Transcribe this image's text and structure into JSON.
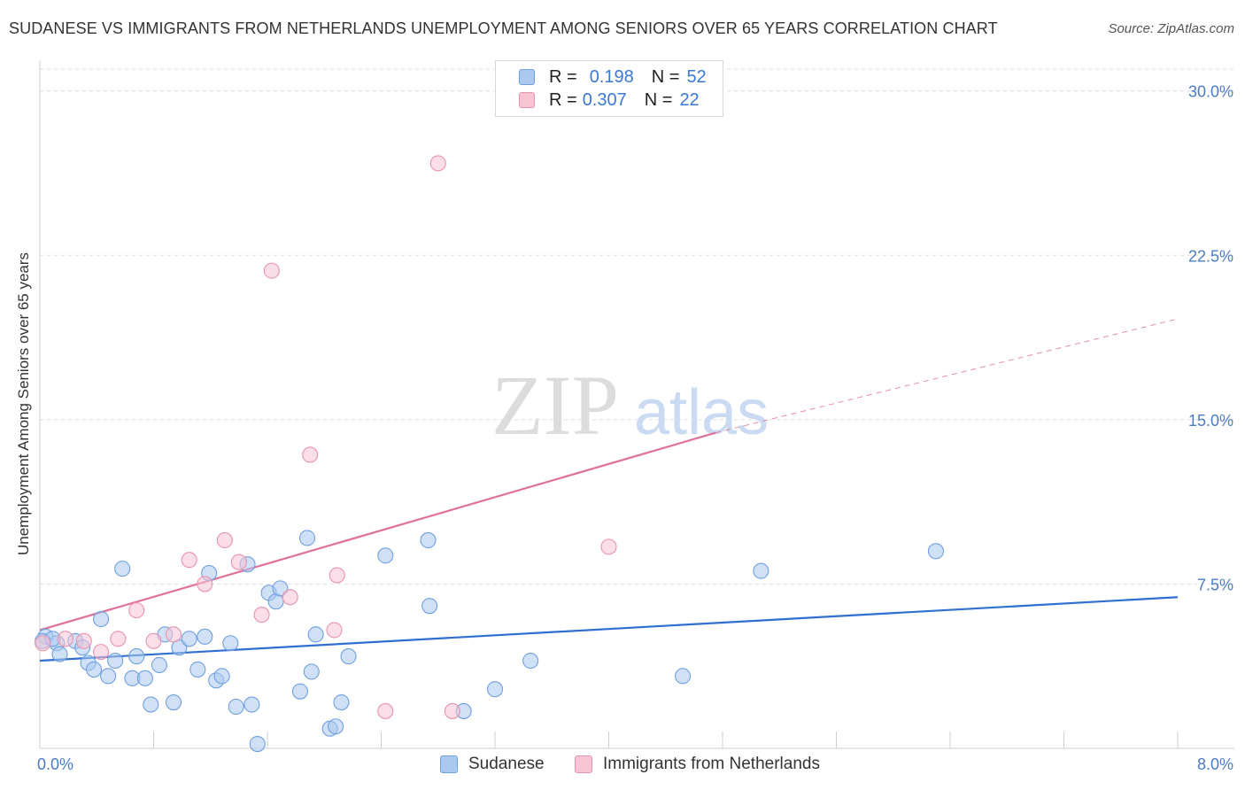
{
  "title": "SUDANESE VS IMMIGRANTS FROM NETHERLANDS UNEMPLOYMENT AMONG SENIORS OVER 65 YEARS CORRELATION CHART",
  "source": "Source: ZipAtlas.com",
  "watermark": {
    "zip": "ZIP",
    "atlas": "atlas"
  },
  "legend": {
    "r_label": "R =",
    "n_label": "N =",
    "rows": [
      {
        "r": "0.198",
        "n": "52",
        "color": "#aac8f0",
        "border": "#6f9fe0"
      },
      {
        "r": "0.307",
        "n": "22",
        "color": "#f8c3d3",
        "border": "#e992ad"
      }
    ]
  },
  "chart_data": {
    "type": "scatter",
    "title": "SUDANESE VS IMMIGRANTS FROM NETHERLANDS UNEMPLOYMENT AMONG SENIORS OVER 65 YEARS CORRELATION CHART",
    "xlabel": "",
    "ylabel": "Unemployment Among Seniors over 65 years",
    "xlim": [
      0,
      8
    ],
    "ylim": [
      0,
      31
    ],
    "x_tick_labels": [
      "0.0%",
      "8.0%"
    ],
    "y_ticks": [
      7.5,
      15.0,
      22.5,
      30.0
    ],
    "y_tick_labels": [
      "7.5%",
      "15.0%",
      "22.5%",
      "30.0%"
    ],
    "grid": true,
    "legend_position": "top-center",
    "series": [
      {
        "name": "Sudanese",
        "color": "#6f9fe0",
        "fill": "#aac8f0",
        "line_color": "#2f6fcf",
        "trend": {
          "x": [
            0.0,
            8.0
          ],
          "y": [
            4.0,
            6.9
          ]
        },
        "points": [
          [
            0.04,
            5.1
          ],
          [
            0.12,
            4.8
          ],
          [
            0.14,
            4.3
          ],
          [
            0.25,
            4.9
          ],
          [
            0.3,
            4.6
          ],
          [
            0.34,
            3.9
          ],
          [
            0.38,
            3.6
          ],
          [
            0.43,
            5.9
          ],
          [
            0.48,
            3.3
          ],
          [
            0.53,
            4.0
          ],
          [
            0.58,
            8.2
          ],
          [
            0.65,
            3.2
          ],
          [
            0.68,
            4.2
          ],
          [
            0.74,
            3.2
          ],
          [
            0.78,
            2.0
          ],
          [
            0.84,
            3.8
          ],
          [
            0.88,
            5.2
          ],
          [
            0.94,
            2.1
          ],
          [
            0.98,
            4.6
          ],
          [
            1.05,
            5.0
          ],
          [
            1.11,
            3.6
          ],
          [
            1.16,
            5.1
          ],
          [
            1.19,
            8.0
          ],
          [
            1.24,
            3.1
          ],
          [
            1.28,
            3.3
          ],
          [
            1.34,
            4.8
          ],
          [
            1.38,
            1.9
          ],
          [
            1.46,
            8.4
          ],
          [
            1.49,
            2.0
          ],
          [
            1.53,
            0.2
          ],
          [
            1.61,
            7.1
          ],
          [
            1.66,
            6.7
          ],
          [
            1.69,
            7.3
          ],
          [
            1.83,
            2.6
          ],
          [
            1.88,
            9.6
          ],
          [
            1.91,
            3.5
          ],
          [
            1.94,
            5.2
          ],
          [
            2.04,
            0.9
          ],
          [
            2.08,
            1.0
          ],
          [
            2.12,
            2.1
          ],
          [
            2.17,
            4.2
          ],
          [
            2.43,
            8.8
          ],
          [
            2.73,
            9.5
          ],
          [
            2.74,
            6.5
          ],
          [
            2.98,
            1.7
          ],
          [
            3.2,
            2.7
          ],
          [
            3.45,
            4.0
          ],
          [
            4.52,
            3.3
          ],
          [
            5.07,
            8.1
          ],
          [
            6.3,
            9.0
          ],
          [
            0.02,
            4.9
          ],
          [
            0.09,
            5.0
          ]
        ]
      },
      {
        "name": "Immigrants from Netherlands",
        "color": "#e992ad",
        "fill": "#f8c3d3",
        "line_color": "#e0709a",
        "trend": {
          "x": [
            0.0,
            4.75
          ],
          "y": [
            5.4,
            14.4
          ]
        },
        "trend_dashed": {
          "x": [
            4.75,
            8.0
          ],
          "y": [
            14.4,
            19.6
          ]
        },
        "points": [
          [
            0.02,
            4.8
          ],
          [
            0.18,
            5.0
          ],
          [
            0.31,
            4.9
          ],
          [
            0.43,
            4.4
          ],
          [
            0.55,
            5.0
          ],
          [
            0.68,
            6.3
          ],
          [
            0.8,
            4.9
          ],
          [
            0.94,
            5.2
          ],
          [
            1.05,
            8.6
          ],
          [
            1.16,
            7.5
          ],
          [
            1.3,
            9.5
          ],
          [
            1.4,
            8.5
          ],
          [
            1.56,
            6.1
          ],
          [
            1.63,
            21.8
          ],
          [
            1.76,
            6.9
          ],
          [
            1.9,
            13.4
          ],
          [
            2.07,
            5.4
          ],
          [
            2.09,
            7.9
          ],
          [
            2.43,
            1.7
          ],
          [
            2.8,
            26.7
          ],
          [
            2.9,
            1.7
          ],
          [
            4.0,
            9.2
          ]
        ]
      }
    ]
  },
  "bottom_legend": [
    {
      "label": "Sudanese",
      "color": "#aac8f0",
      "border": "#6f9fe0"
    },
    {
      "label": "Immigrants from Netherlands",
      "color": "#f8c3d3",
      "border": "#e992ad"
    }
  ]
}
